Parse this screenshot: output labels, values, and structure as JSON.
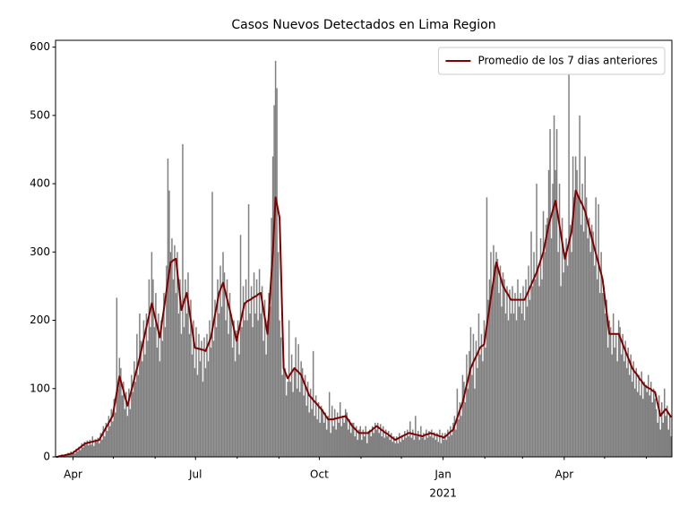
{
  "chart_data": {
    "type": "bar",
    "title": "Casos Nuevos Detectados en Lima Region",
    "xlim": [
      0,
      458
    ],
    "xticks": [
      {
        "value": 13,
        "label": "Apr"
      },
      {
        "value": 104,
        "label": "Jul"
      },
      {
        "value": 196,
        "label": "Oct"
      },
      {
        "value": 288,
        "label": "Jan"
      },
      {
        "value": 378,
        "label": "Apr"
      }
    ],
    "xticks_minor": [
      43,
      74,
      135,
      166,
      227,
      257,
      319,
      347,
      408,
      439
    ],
    "year_label": "2021",
    "ylim": [
      0,
      610
    ],
    "yticks": [
      0,
      100,
      200,
      300,
      400,
      500,
      600
    ],
    "legend": "upper right",
    "series": [
      {
        "type": "bar",
        "color": "#808080",
        "values": [
          0,
          0,
          0,
          2,
          1,
          3,
          1,
          4,
          2,
          6,
          3,
          8,
          4,
          9,
          5,
          12,
          8,
          15,
          10,
          20,
          14,
          22,
          18,
          24,
          17,
          25,
          18,
          30,
          16,
          26,
          22,
          28,
          20,
          35,
          25,
          45,
          30,
          50,
          38,
          60,
          45,
          70,
          52,
          85,
          65,
          233,
          100,
          145,
          130,
          90,
          110,
          70,
          95,
          60,
          100,
          70,
          120,
          95,
          140,
          110,
          180,
          120,
          210,
          170,
          140,
          200,
          150,
          210,
          170,
          260,
          190,
          300,
          260,
          190,
          240,
          160,
          210,
          140,
          200,
          170,
          240,
          190,
          280,
          437,
          390,
          300,
          320,
          260,
          310,
          240,
          300,
          210,
          260,
          180,
          458,
          190,
          260,
          210,
          270,
          180,
          230,
          150,
          200,
          130,
          190,
          120,
          180,
          140,
          170,
          110,
          175,
          130,
          180,
          140,
          200,
          160,
          388,
          170,
          230,
          190,
          260,
          210,
          280,
          220,
          300,
          270,
          200,
          260,
          180,
          240,
          210,
          160,
          200,
          140,
          185,
          200,
          150,
          325,
          190,
          250,
          200,
          260,
          200,
          370,
          210,
          250,
          190,
          270,
          210,
          260,
          200,
          275,
          210,
          250,
          170,
          230,
          150,
          200,
          240,
          220,
          350,
          440,
          515,
          580,
          540,
          300,
          200,
          175,
          120,
          145,
          130,
          90,
          110,
          200,
          110,
          150,
          95,
          130,
          175,
          100,
          165,
          95,
          140,
          130,
          90,
          120,
          75,
          110,
          65,
          100,
          70,
          155,
          60,
          90,
          55,
          80,
          50,
          75,
          70,
          50,
          65,
          40,
          60,
          95,
          35,
          75,
          45,
          70,
          40,
          65,
          50,
          80,
          45,
          60,
          50,
          70,
          65,
          40,
          55,
          35,
          50,
          50,
          30,
          45,
          25,
          40,
          45,
          25,
          40,
          30,
          45,
          20,
          38,
          40,
          30,
          45,
          35,
          50,
          40,
          50,
          35,
          48,
          30,
          45,
          28,
          40,
          30,
          38,
          25,
          35,
          22,
          30,
          20,
          30,
          20,
          35,
          22,
          32,
          25,
          38,
          28,
          40,
          30,
          52,
          28,
          40,
          25,
          60,
          30,
          38,
          25,
          45,
          28,
          35,
          25,
          40,
          28,
          38,
          30,
          40,
          28,
          36,
          25,
          35,
          22,
          40,
          20,
          35,
          25,
          35,
          25,
          40,
          30,
          45,
          32,
          50,
          60,
          40,
          100,
          55,
          80,
          60,
          120,
          110,
          80,
          150,
          100,
          155,
          190,
          120,
          180,
          100,
          170,
          130,
          210,
          150,
          180,
          140,
          200,
          160,
          380,
          230,
          260,
          300,
          250,
          310,
          280,
          300,
          290,
          240,
          280,
          220,
          270,
          260,
          210,
          250,
          200,
          245,
          210,
          250,
          210,
          240,
          200,
          260,
          220,
          240,
          210,
          250,
          200,
          260,
          220,
          280,
          230,
          330,
          250,
          300,
          260,
          400,
          280,
          250,
          320,
          260,
          360,
          300,
          340,
          350,
          420,
          480,
          320,
          400,
          500,
          420,
          480,
          300,
          400,
          250,
          350,
          270,
          300,
          320,
          280,
          570,
          340,
          300,
          440,
          380,
          440,
          420,
          380,
          500,
          340,
          400,
          330,
          440,
          380,
          320,
          350,
          300,
          340,
          330,
          280,
          380,
          260,
          370,
          240,
          300,
          240,
          250,
          210,
          230,
          160,
          200,
          190,
          150,
          210,
          160,
          180,
          140,
          200,
          190,
          150,
          180,
          140,
          170,
          130,
          160,
          120,
          150,
          110,
          140,
          100,
          130,
          95,
          120,
          90,
          125,
          85,
          110,
          105,
          95,
          120,
          90,
          110,
          80,
          100,
          85,
          70,
          50,
          90,
          40,
          80,
          50,
          100,
          60,
          75,
          40,
          60,
          30
        ]
      },
      {
        "type": "line",
        "name": "Promedio de los 7 dias anteriores",
        "color": "#800000",
        "values": [
          0,
          0,
          1,
          1,
          2,
          2,
          2,
          3,
          3,
          4,
          4,
          5,
          5,
          7,
          8,
          10,
          11,
          13,
          14,
          16,
          17,
          19,
          20,
          20,
          21,
          21,
          22,
          22,
          23,
          23,
          24,
          24,
          25,
          29,
          32,
          36,
          39,
          43,
          46,
          50,
          53,
          57,
          60,
          72,
          83,
          95,
          106,
          118,
          111,
          104,
          97,
          89,
          82,
          75,
          83,
          91,
          98,
          106,
          114,
          122,
          129,
          137,
          145,
          154,
          163,
          172,
          181,
          190,
          199,
          207,
          216,
          225,
          217,
          208,
          200,
          192,
          183,
          175,
          189,
          203,
          216,
          230,
          244,
          258,
          271,
          285,
          286,
          288,
          289,
          290,
          271,
          253,
          234,
          215,
          221,
          228,
          234,
          240,
          227,
          213,
          200,
          187,
          173,
          160,
          159,
          159,
          158,
          158,
          157,
          157,
          156,
          155,
          160,
          165,
          170,
          175,
          186,
          197,
          208,
          218,
          229,
          240,
          245,
          250,
          255,
          247,
          239,
          231,
          223,
          215,
          206,
          197,
          188,
          179,
          170,
          179,
          188,
          198,
          207,
          216,
          225,
          226,
          228,
          229,
          230,
          231,
          233,
          234,
          235,
          236,
          238,
          239,
          240,
          228,
          216,
          204,
          192,
          180,
          210,
          240,
          270,
          300,
          340,
          380,
          370,
          360,
          350,
          277,
          203,
          130,
          125,
          120,
          115,
          118,
          121,
          124,
          127,
          130,
          128,
          126,
          124,
          122,
          120,
          115,
          110,
          105,
          100,
          95,
          90,
          88,
          86,
          83,
          81,
          79,
          77,
          74,
          72,
          70,
          67,
          64,
          61,
          58,
          55,
          55,
          55,
          55,
          55,
          56,
          56,
          57,
          57,
          58,
          58,
          59,
          59,
          60,
          57,
          54,
          51,
          48,
          45,
          43,
          41,
          39,
          37,
          35,
          35,
          35,
          35,
          35,
          35,
          35,
          35,
          37,
          38,
          40,
          42,
          43,
          45,
          44,
          42,
          41,
          39,
          38,
          36,
          35,
          34,
          32,
          31,
          29,
          28,
          26,
          25,
          26,
          27,
          28,
          29,
          30,
          31,
          32,
          33,
          34,
          35,
          35,
          34,
          34,
          33,
          33,
          32,
          32,
          31,
          31,
          30,
          31,
          32,
          33,
          33,
          34,
          35,
          34,
          34,
          33,
          32,
          32,
          31,
          30,
          30,
          29,
          28,
          30,
          31,
          33,
          35,
          37,
          38,
          40,
          46,
          51,
          57,
          63,
          69,
          74,
          80,
          88,
          97,
          105,
          113,
          122,
          130,
          134,
          139,
          143,
          147,
          151,
          156,
          160,
          162,
          163,
          165,
          179,
          193,
          206,
          220,
          233,
          246,
          259,
          272,
          285,
          278,
          271,
          264,
          257,
          250,
          247,
          243,
          240,
          237,
          233,
          230,
          230,
          230,
          230,
          230,
          230,
          230,
          230,
          230,
          230,
          230,
          234,
          239,
          243,
          248,
          252,
          257,
          261,
          266,
          270,
          276,
          282,
          288,
          294,
          300,
          310,
          320,
          330,
          340,
          347,
          354,
          361,
          368,
          375,
          363,
          351,
          339,
          327,
          314,
          302,
          290,
          298,
          306,
          314,
          322,
          330,
          350,
          370,
          390,
          386,
          381,
          377,
          373,
          369,
          364,
          360,
          352,
          344,
          336,
          328,
          320,
          313,
          305,
          298,
          290,
          283,
          275,
          268,
          260,
          244,
          228,
          212,
          196,
          180,
          180,
          180,
          180,
          180,
          180,
          180,
          180,
          175,
          170,
          165,
          160,
          155,
          150,
          145,
          140,
          135,
          130,
          127,
          124,
          122,
          119,
          116,
          113,
          111,
          108,
          105,
          104,
          102,
          101,
          100,
          99,
          97,
          96,
          95,
          86,
          77,
          69,
          60,
          63,
          65,
          68,
          70,
          67,
          64,
          61,
          58
        ]
      }
    ]
  }
}
